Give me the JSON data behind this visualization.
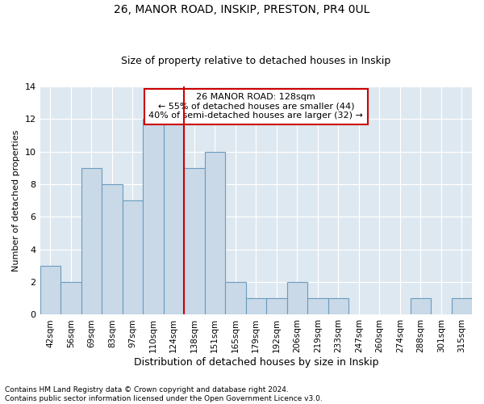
{
  "title_line1": "26, MANOR ROAD, INSKIP, PRESTON, PR4 0UL",
  "title_line2": "Size of property relative to detached houses in Inskip",
  "xlabel": "Distribution of detached houses by size in Inskip",
  "ylabel": "Number of detached properties",
  "footnote": "Contains HM Land Registry data © Crown copyright and database right 2024.\nContains public sector information licensed under the Open Government Licence v3.0.",
  "bin_labels": [
    "42sqm",
    "56sqm",
    "69sqm",
    "83sqm",
    "97sqm",
    "110sqm",
    "124sqm",
    "138sqm",
    "151sqm",
    "165sqm",
    "179sqm",
    "192sqm",
    "206sqm",
    "219sqm",
    "233sqm",
    "247sqm",
    "260sqm",
    "274sqm",
    "288sqm",
    "301sqm",
    "315sqm"
  ],
  "bar_values": [
    3,
    2,
    9,
    8,
    7,
    12,
    12,
    9,
    10,
    2,
    1,
    1,
    2,
    1,
    1,
    0,
    0,
    0,
    1,
    0,
    1
  ],
  "bar_color": "#c9d9e8",
  "bar_edge_color": "#6a9cbf",
  "vline_x": 6.5,
  "vline_color": "#cc0000",
  "annotation_line1": "26 MANOR ROAD: 128sqm",
  "annotation_line2": "← 55% of detached houses are smaller (44)",
  "annotation_line3": "40% of semi-detached houses are larger (32) →",
  "annotation_box_color": "#ffffff",
  "annotation_box_edge": "#cc0000",
  "ylim": [
    0,
    14
  ],
  "yticks": [
    0,
    2,
    4,
    6,
    8,
    10,
    12,
    14
  ],
  "plot_bg_color": "#dde8f0",
  "fig_bg_color": "#ffffff",
  "title1_fontsize": 10,
  "title2_fontsize": 9,
  "ylabel_fontsize": 8,
  "xlabel_fontsize": 9,
  "tick_fontsize": 7.5,
  "annotation_fontsize": 8,
  "footnote_fontsize": 6.5
}
